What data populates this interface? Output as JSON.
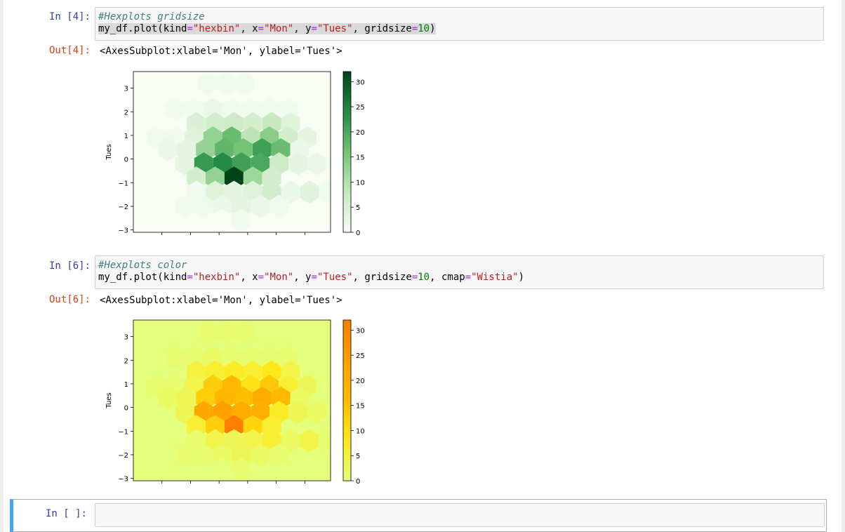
{
  "cells": [
    {
      "in_prompt": "In [4]:",
      "comment": "#Hexplots gridsize",
      "code": {
        "t1": "my_df.plot(kind",
        "eq1": "=",
        "s1": "\"hexbin\"",
        "t2": ", x",
        "eq2": "=",
        "s2": "\"Mon\"",
        "t3": ", y",
        "eq3": "=",
        "s3": "\"Tues\"",
        "t4": ", gridsize",
        "eq4": "=",
        "n1": "10",
        "t5": ")"
      },
      "out_prompt": "Out[4]:",
      "output": "<AxesSubplot:xlabel='Mon', ylabel='Tues'>"
    },
    {
      "in_prompt": "In [6]:",
      "comment": "#Hexplots color",
      "code": {
        "t1": "my_df.plot(kind",
        "eq1": "=",
        "s1": "\"hexbin\"",
        "t2": ", x",
        "eq2": "=",
        "s2": "\"Mon\"",
        "t3": ", y",
        "eq3": "=",
        "s3": "\"Tues\"",
        "t4": ", gridsize",
        "eq4": "=",
        "n1": "10",
        "t5": ", cmap",
        "eq5": "=",
        "s4": "\"Wistia\"",
        "t6": ")"
      },
      "out_prompt": "Out[6]:",
      "output": "<AxesSubplot:xlabel='Mon', ylabel='Tues'>"
    },
    {
      "in_prompt": "In [ ]:"
    }
  ],
  "chart_data": [
    {
      "type": "heatmap",
      "kind": "hexbin",
      "colormap": "Greens",
      "color_low": "#f7fcf5",
      "color_high": "#00441b",
      "xlabel": "",
      "ylabel": "Tues",
      "ylim": [
        -3.1,
        3.7
      ],
      "xlim": [
        -3.5,
        3.4
      ],
      "yticks": [
        "3",
        "2",
        "1",
        "0",
        "−1",
        "−2",
        "−3"
      ],
      "ytick_values": [
        3,
        2,
        1,
        0,
        -1,
        -2,
        -3
      ],
      "xtick_values": [
        -2.5,
        -1.5,
        -0.5,
        0.5,
        1.5,
        2.5
      ],
      "colorbar": {
        "min": 0,
        "max": 32,
        "ticks": [
          "30",
          "25",
          "20",
          "15",
          "10",
          "5",
          "0"
        ],
        "tick_values": [
          30,
          25,
          20,
          15,
          10,
          5,
          0
        ]
      },
      "hex_rows": [
        {
          "y": 3.2,
          "x_start": -0.9,
          "counts": [
            1,
            1,
            1
          ]
        },
        {
          "y": 2.1,
          "x_start": -2.7,
          "counts": [
            0,
            1,
            1,
            2,
            1,
            1,
            1,
            1
          ]
        },
        {
          "y": 1.5,
          "x_start": -1.3,
          "counts": [
            5,
            6,
            7,
            6,
            8,
            4
          ]
        },
        {
          "y": 0.9,
          "x_start": -2.7,
          "counts": [
            1,
            1,
            4,
            13,
            17,
            9,
            14,
            6,
            3
          ]
        },
        {
          "y": 0.4,
          "x_start": -2.3,
          "counts": [
            2,
            3,
            13,
            18,
            16,
            21,
            17,
            2
          ]
        },
        {
          "y": -0.2,
          "x_start": -1.7,
          "counts": [
            3,
            22,
            24,
            21,
            20,
            7,
            3,
            2
          ]
        },
        {
          "y": -0.8,
          "x_start": -1.3,
          "counts": [
            6,
            13,
            32,
            12,
            6
          ]
        },
        {
          "y": -1.4,
          "x_start": -1.3,
          "counts": [
            1,
            4,
            3,
            4,
            6,
            2,
            4,
            1,
            1
          ]
        },
        {
          "y": -2.0,
          "x_start": -1.7,
          "counts": [
            1,
            1,
            2,
            3,
            2,
            1
          ]
        },
        {
          "y": -2.6,
          "x_start": -0.4,
          "counts": [
            0,
            1
          ]
        }
      ]
    },
    {
      "type": "heatmap",
      "kind": "hexbin",
      "colormap": "Wistia",
      "color_low": "#e4ff7a",
      "color_high": "#fc7f00",
      "xlabel": "",
      "ylabel": "Tues",
      "ylim": [
        -3.1,
        3.7
      ],
      "xlim": [
        -3.5,
        3.4
      ],
      "yticks": [
        "3",
        "2",
        "1",
        "0",
        "−1",
        "−2",
        "−3"
      ],
      "ytick_values": [
        3,
        2,
        1,
        0,
        -1,
        -2,
        -3
      ],
      "xtick_values": [
        -2.5,
        -1.5,
        -0.5,
        0.5,
        1.5,
        2.5
      ],
      "colorbar": {
        "min": 0,
        "max": 32,
        "ticks": [
          "30",
          "25",
          "20",
          "15",
          "10",
          "5",
          "0"
        ],
        "tick_values": [
          30,
          25,
          20,
          15,
          10,
          5,
          0
        ]
      },
      "hex_rows": [
        {
          "y": 3.2,
          "x_start": -0.9,
          "counts": [
            1,
            1,
            1
          ]
        },
        {
          "y": 2.1,
          "x_start": -2.7,
          "counts": [
            0,
            1,
            1,
            2,
            1,
            1,
            1,
            1
          ]
        },
        {
          "y": 1.5,
          "x_start": -1.3,
          "counts": [
            5,
            6,
            7,
            6,
            8,
            4
          ]
        },
        {
          "y": 0.9,
          "x_start": -2.7,
          "counts": [
            1,
            1,
            4,
            13,
            17,
            9,
            14,
            6,
            3
          ]
        },
        {
          "y": 0.4,
          "x_start": -2.3,
          "counts": [
            2,
            3,
            13,
            18,
            16,
            21,
            17,
            2
          ]
        },
        {
          "y": -0.2,
          "x_start": -1.7,
          "counts": [
            3,
            22,
            24,
            21,
            20,
            7,
            3,
            2
          ]
        },
        {
          "y": -0.8,
          "x_start": -1.3,
          "counts": [
            6,
            13,
            32,
            12,
            6
          ]
        },
        {
          "y": -1.4,
          "x_start": -1.3,
          "counts": [
            1,
            4,
            3,
            4,
            6,
            2,
            4,
            1,
            1
          ]
        },
        {
          "y": -2.0,
          "x_start": -1.7,
          "counts": [
            1,
            1,
            2,
            3,
            2,
            1
          ]
        },
        {
          "y": -2.6,
          "x_start": -0.4,
          "counts": [
            0,
            1
          ]
        }
      ]
    }
  ]
}
